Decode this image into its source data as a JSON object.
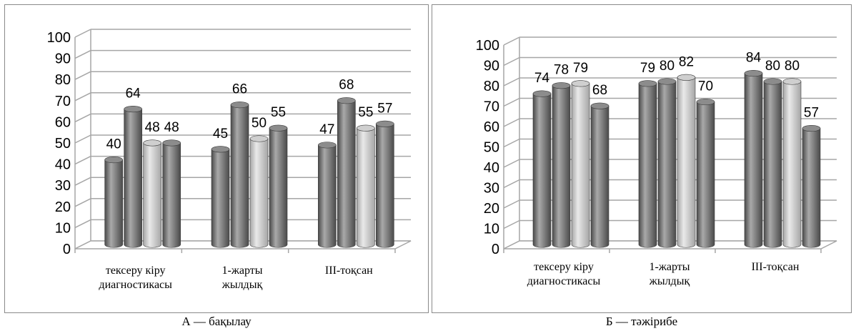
{
  "chart_data": [
    {
      "type": "bar",
      "categories": [
        "тексеру кіру диагностикасы",
        "1-жарты жылдық",
        "ІІІ-тоқсан"
      ],
      "category_lines": [
        [
          "тексеру кіру",
          "диагностикасы"
        ],
        [
          "1-жарты",
          "жылдық"
        ],
        [
          "ІІІ-тоқсан"
        ]
      ],
      "series": [
        {
          "values": [
            40,
            45,
            47
          ],
          "color": "#6e6e6e"
        },
        {
          "values": [
            64,
            66,
            68
          ],
          "color": "#6e6e6e"
        },
        {
          "values": [
            48,
            50,
            55
          ],
          "color": "#bdbdbd"
        },
        {
          "values": [
            48,
            55,
            57
          ],
          "color": "#6e6e6e"
        }
      ],
      "ylim": [
        0,
        100
      ],
      "yticks": [
        0,
        10,
        20,
        30,
        40,
        50,
        60,
        70,
        80,
        90,
        100
      ],
      "grid": true,
      "style": "3d-cylinder",
      "caption": "А — бақылау"
    },
    {
      "type": "bar",
      "categories": [
        "тексеру кіру диагностикасы",
        "1-жарты жылдық",
        "ІІІ-тоқсан"
      ],
      "category_lines": [
        [
          "тексеру кіру",
          "диагностикасы"
        ],
        [
          "1-жарты",
          "жылдық"
        ],
        [
          "ІІІ-тоқсан"
        ]
      ],
      "series": [
        {
          "values": [
            74,
            79,
            84
          ],
          "color": "#6e6e6e"
        },
        {
          "values": [
            78,
            80,
            80
          ],
          "color": "#6e6e6e"
        },
        {
          "values": [
            79,
            82,
            80
          ],
          "color": "#bdbdbd"
        },
        {
          "values": [
            68,
            70,
            57
          ],
          "color": "#6e6e6e"
        }
      ],
      "ylim": [
        0,
        100
      ],
      "yticks": [
        0,
        10,
        20,
        30,
        40,
        50,
        60,
        70,
        80,
        90,
        100
      ],
      "grid": true,
      "style": "3d-cylinder",
      "caption": "Б — тәжірибе"
    }
  ]
}
